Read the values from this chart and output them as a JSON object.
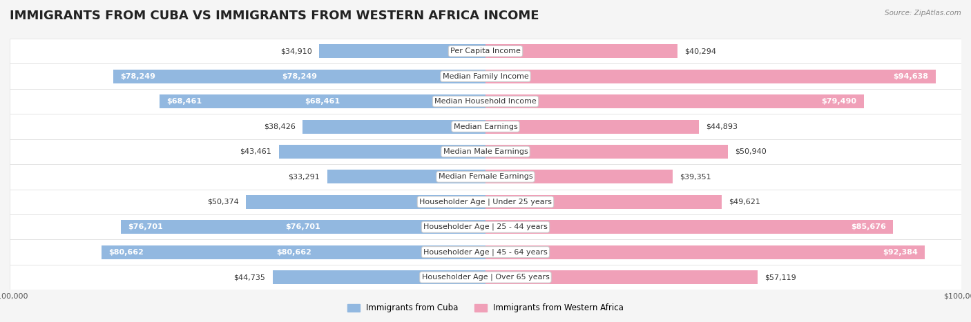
{
  "title": "IMMIGRANTS FROM CUBA VS IMMIGRANTS FROM WESTERN AFRICA INCOME",
  "source": "Source: ZipAtlas.com",
  "categories": [
    "Per Capita Income",
    "Median Family Income",
    "Median Household Income",
    "Median Earnings",
    "Median Male Earnings",
    "Median Female Earnings",
    "Householder Age | Under 25 years",
    "Householder Age | 25 - 44 years",
    "Householder Age | 45 - 64 years",
    "Householder Age | Over 65 years"
  ],
  "cuba_values": [
    34910,
    78249,
    68461,
    38426,
    43461,
    33291,
    50374,
    76701,
    80662,
    44735
  ],
  "western_africa_values": [
    40294,
    94638,
    79490,
    44893,
    50940,
    39351,
    49621,
    85676,
    92384,
    57119
  ],
  "cuba_color": "#92b8e0",
  "western_africa_color": "#f0a0b8",
  "cuba_label": "Immigrants from Cuba",
  "western_africa_label": "Immigrants from Western Africa",
  "max_value": 100000,
  "bar_height": 0.55,
  "background_color": "#f5f5f5",
  "row_bg_color": "#ffffff",
  "title_fontsize": 13,
  "label_fontsize": 8.5,
  "value_fontsize": 8,
  "category_fontsize": 8
}
